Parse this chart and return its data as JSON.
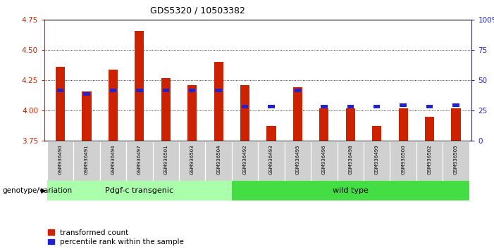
{
  "title": "GDS5320 / 10503382",
  "samples": [
    "GSM936490",
    "GSM936491",
    "GSM936494",
    "GSM936497",
    "GSM936501",
    "GSM936503",
    "GSM936504",
    "GSM936492",
    "GSM936493",
    "GSM936495",
    "GSM936496",
    "GSM936498",
    "GSM936499",
    "GSM936500",
    "GSM936502",
    "GSM936505"
  ],
  "transformed_count": [
    4.36,
    4.16,
    4.34,
    4.66,
    4.27,
    4.21,
    4.4,
    4.21,
    3.87,
    4.19,
    4.02,
    4.02,
    3.87,
    4.02,
    3.95,
    4.02
  ],
  "percentile_rank": [
    40,
    37,
    40,
    40,
    40,
    40,
    40,
    27,
    27,
    40,
    27,
    27,
    27,
    28,
    27,
    28
  ],
  "ylim_left": [
    3.75,
    4.75
  ],
  "ylim_right": [
    0,
    100
  ],
  "yticks_left": [
    3.75,
    4.0,
    4.25,
    4.5,
    4.75
  ],
  "yticks_right": [
    0,
    25,
    50,
    75,
    100
  ],
  "ytick_labels_right": [
    "0",
    "25",
    "50",
    "75",
    "100%"
  ],
  "bar_color": "#cc2200",
  "percentile_color": "#2222cc",
  "bar_bottom": 3.75,
  "group1_label": "Pdgf-c transgenic",
  "group2_label": "wild type",
  "group1_color": "#aaffaa",
  "group2_color": "#44dd44",
  "group1_count": 7,
  "group2_count": 9,
  "legend_labels": [
    "transformed count",
    "percentile rank within the sample"
  ],
  "genotype_label": "genotype/variation",
  "left_axis_color": "#cc2200",
  "right_axis_color": "#2222cc",
  "bar_width": 0.35,
  "pct_bar_width": 0.25,
  "pct_bar_height": 3.0,
  "grid_yticks": [
    4.0,
    4.25,
    4.5
  ]
}
